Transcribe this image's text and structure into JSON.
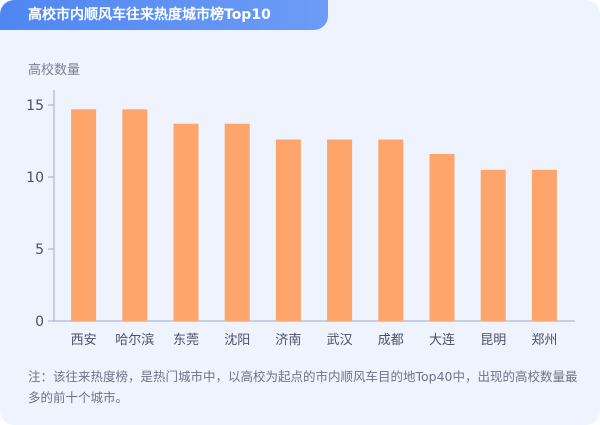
{
  "title": "高校市内顺风车往来热度城市榜Top10",
  "note": "注：该往来热度榜，是热门城市中，以高校为起点的市内顺风车目的地Top40中，出现的高校数量最多的前十个城市。",
  "colors": {
    "bar": "#fda56a",
    "title_bg": "#4f86f2",
    "axis": "#9da9c8"
  },
  "chart_data": {
    "type": "bar",
    "title": "高校市内顺风车往来热度城市榜Top10",
    "xlabel": "",
    "ylabel": "高校数量",
    "ylim": [
      0,
      15
    ],
    "yticks": [
      0,
      5,
      10,
      15
    ],
    "grid": false,
    "categories": [
      "西安",
      "哈尔滨",
      "东莞",
      "沈阳",
      "济南",
      "武汉",
      "成都",
      "大连",
      "昆明",
      "郑州"
    ],
    "values": [
      14.7,
      14.7,
      13.7,
      13.7,
      12.6,
      12.6,
      12.6,
      11.6,
      10.5,
      10.5
    ]
  }
}
